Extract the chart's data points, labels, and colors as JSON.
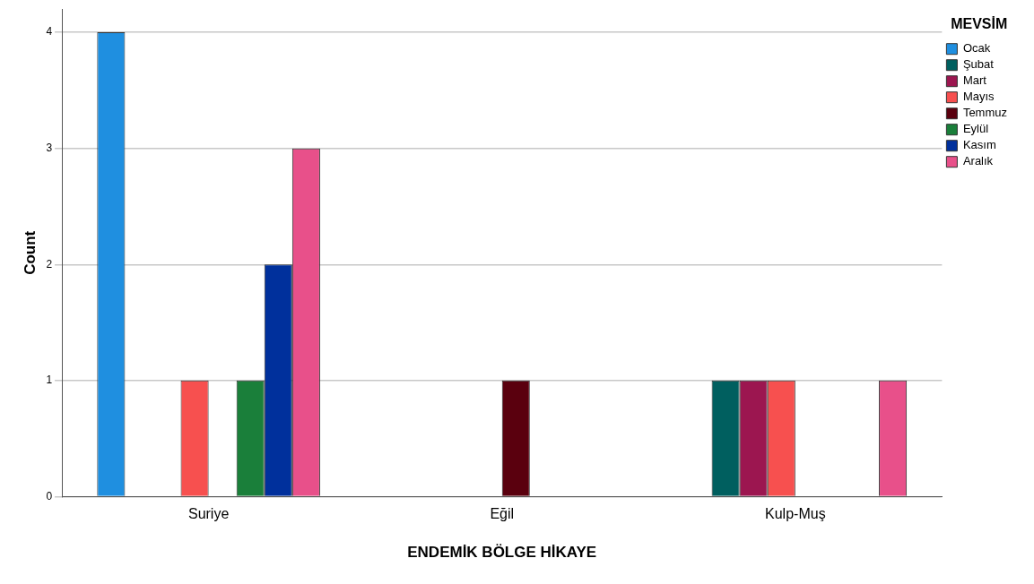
{
  "chart_data": {
    "type": "bar",
    "xlabel": "ENDEMİK BÖLGE HİKAYE",
    "ylabel": "Count",
    "legend_title": "MEVSİM",
    "categories": [
      "Suriye",
      "Eğil",
      "Kulp-Muş"
    ],
    "series": [
      {
        "name": "Ocak",
        "color": "#1f8fe0",
        "values": [
          4,
          0,
          0
        ]
      },
      {
        "name": "Şubat",
        "color": "#005f5f",
        "values": [
          0,
          0,
          1
        ]
      },
      {
        "name": "Mart",
        "color": "#9c1650",
        "values": [
          0,
          0,
          1
        ]
      },
      {
        "name": "Mayıs",
        "color": "#f7504f",
        "values": [
          1,
          0,
          1
        ]
      },
      {
        "name": "Temmuz",
        "color": "#5a000e",
        "values": [
          0,
          1,
          0
        ]
      },
      {
        "name": "Eylül",
        "color": "#1a7f3a",
        "values": [
          1,
          0,
          0
        ]
      },
      {
        "name": "Kasım",
        "color": "#00309c",
        "values": [
          2,
          0,
          0
        ]
      },
      {
        "name": "Aralık",
        "color": "#e8508a",
        "values": [
          3,
          0,
          1
        ]
      }
    ],
    "ylim": [
      0,
      4.2
    ],
    "yticks": [
      0,
      1,
      2,
      3,
      4
    ],
    "grid": "y",
    "legend": "top right"
  }
}
